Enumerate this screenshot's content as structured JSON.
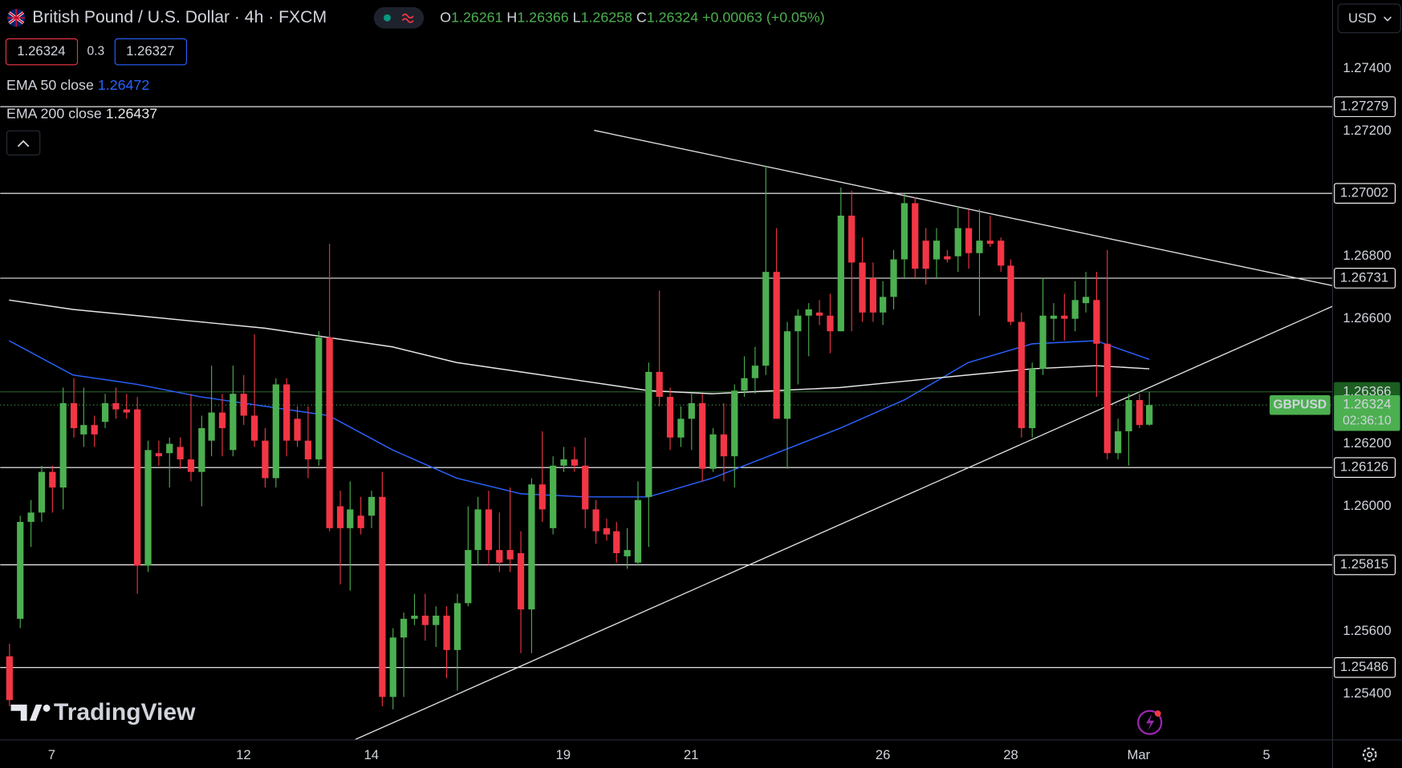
{
  "header": {
    "ohlc_labels": [
      "O",
      "H",
      "L",
      "C"
    ],
    "change": "+0.00063 (+0.05%)",
    "bid": 1.26324,
    "spread": 0.3,
    "ask": 1.26327,
    "currency": "USD",
    "brand": "TradingView"
  },
  "chart_data": {
    "type": "candlestick",
    "title": "British Pound / U.S. Dollar · 4h · FXCM",
    "symbol": "GBPUSD",
    "up_color": "#4caf50",
    "down_color": "#f23645",
    "level_color": "#ffffff",
    "x": [
      0,
      1,
      2,
      3,
      4,
      5,
      6,
      7,
      8,
      9,
      10,
      11,
      12,
      13,
      14,
      15,
      16,
      17,
      18,
      19,
      20,
      21,
      22,
      23,
      24,
      25,
      26,
      27,
      28,
      29,
      30,
      31,
      32,
      33,
      34,
      35,
      36,
      37,
      38,
      39,
      40,
      41,
      42,
      43,
      44,
      45,
      46,
      47,
      48,
      49,
      50,
      51,
      52,
      53,
      54,
      55,
      56,
      57,
      58,
      59,
      60,
      61,
      62,
      63,
      64,
      65,
      66,
      67,
      68,
      69,
      70,
      71,
      72,
      73,
      74,
      75,
      76,
      77,
      78,
      79,
      80,
      81,
      82,
      83,
      84,
      85,
      86,
      87,
      88,
      89,
      90,
      91,
      92,
      93,
      94,
      95,
      96,
      97,
      98,
      99,
      100,
      101,
      102,
      103,
      104,
      105,
      106,
      107
    ],
    "open": [
      1.2552,
      1.2564,
      1.2595,
      1.2598,
      1.2611,
      1.2606,
      1.2633,
      1.2623,
      1.2626,
      1.2627,
      1.2633,
      1.2631,
      1.2631,
      1.2581,
      1.2617,
      1.2617,
      1.2619,
      1.2615,
      1.2611,
      1.2621,
      1.263,
      1.2618,
      1.2636,
      1.2629,
      1.2621,
      1.2609,
      1.2639,
      1.2628,
      1.2621,
      1.2615,
      1.2654,
      1.26,
      1.2593,
      1.2597,
      1.2597,
      1.2603,
      1.2539,
      1.2558,
      1.2564,
      1.2565,
      1.2562,
      1.2565,
      1.2554,
      1.2569,
      1.2586,
      1.2599,
      1.2586,
      1.2586,
      1.2585,
      1.2567,
      1.2607,
      1.2593,
      1.2613,
      1.2615,
      1.2613,
      1.2599,
      1.2593,
      1.2592,
      1.2584,
      1.2582,
      1.2603,
      1.2643,
      1.2635,
      1.2622,
      1.2628,
      1.2633,
      1.2612,
      1.2623,
      1.2616,
      1.2637,
      1.2641,
      1.2645,
      1.2675,
      1.2628,
      1.2656,
      1.2661,
      1.2662,
      1.2661,
      1.2656,
      1.2693,
      1.2678,
      1.2673,
      1.2662,
      1.2667,
      1.2679,
      1.2697,
      1.2685,
      1.2679,
      1.268,
      1.268,
      1.2689,
      1.2681,
      1.2685,
      1.2685,
      1.2677,
      1.2659,
      1.2625,
      1.2644,
      1.266,
      1.2661,
      1.266,
      1.2665,
      1.2666,
      1.2652,
      1.2617,
      1.2624,
      1.2634,
      1.26261
    ],
    "high": [
      1.2556,
      1.2597,
      1.2602,
      1.2613,
      1.2613,
      1.2638,
      1.2641,
      1.2638,
      1.2629,
      1.2636,
      1.2638,
      1.2636,
      1.2635,
      1.2621,
      1.2621,
      1.2622,
      1.2622,
      1.2636,
      1.2629,
      1.2645,
      1.2636,
      1.2645,
      1.2642,
      1.2655,
      1.2625,
      1.2641,
      1.2641,
      1.2632,
      1.2632,
      1.2656,
      1.2684,
      1.2605,
      1.2608,
      1.2603,
      1.2605,
      1.2611,
      1.2561,
      1.2566,
      1.2572,
      1.2572,
      1.2568,
      1.2568,
      1.2572,
      1.26,
      1.2603,
      1.2605,
      1.2598,
      1.2606,
      1.2592,
      1.2609,
      1.2624,
      1.2616,
      1.2619,
      1.2619,
      1.2622,
      1.2602,
      1.2596,
      1.2595,
      1.2593,
      1.2608,
      1.2646,
      1.2669,
      1.2638,
      1.2632,
      1.2636,
      1.2636,
      1.2625,
      1.2633,
      1.2639,
      1.2648,
      1.2651,
      1.2709,
      1.2689,
      1.2659,
      1.2663,
      1.2665,
      1.2666,
      1.2668,
      1.2702,
      1.2701,
      1.2686,
      1.2678,
      1.2672,
      1.2682,
      1.27,
      1.2699,
      1.2689,
      1.2689,
      1.2682,
      1.2696,
      1.2695,
      1.2695,
      1.2693,
      1.2686,
      1.2679,
      1.2662,
      1.2646,
      1.2673,
      1.2665,
      1.2668,
      1.2672,
      1.2675,
      1.2675,
      1.2682,
      1.2628,
      1.2636,
      1.2636,
      1.26366
    ],
    "low": [
      1.2536,
      1.2561,
      1.2587,
      1.2595,
      1.2598,
      1.2599,
      1.2622,
      1.2619,
      1.2619,
      1.2625,
      1.2628,
      1.2628,
      1.2572,
      1.2579,
      1.2613,
      1.2606,
      1.2612,
      1.2608,
      1.26,
      1.2616,
      1.2616,
      1.2616,
      1.2626,
      1.2619,
      1.2606,
      1.2606,
      1.2616,
      1.2619,
      1.2609,
      1.2613,
      1.2592,
      1.2575,
      1.2573,
      1.2591,
      1.2593,
      1.2536,
      1.2535,
      1.2539,
      1.2562,
      1.2557,
      1.2555,
      1.2545,
      1.2541,
      1.2568,
      1.2581,
      1.2581,
      1.2579,
      1.2579,
      1.2553,
      1.2553,
      1.2595,
      1.2591,
      1.2611,
      1.2611,
      1.2593,
      1.2588,
      1.2589,
      1.2582,
      1.258,
      1.2581,
      1.2587,
      1.2632,
      1.2618,
      1.2619,
      1.2618,
      1.2608,
      1.2611,
      1.2608,
      1.2606,
      1.2635,
      1.2636,
      1.2642,
      1.2628,
      1.2612,
      1.2639,
      1.2648,
      1.2658,
      1.2649,
      1.2656,
      1.2656,
      1.2659,
      1.2659,
      1.2658,
      1.2663,
      1.2673,
      1.2673,
      1.2671,
      1.2673,
      1.2678,
      1.2675,
      1.2676,
      1.2661,
      1.2683,
      1.2675,
      1.2658,
      1.2622,
      1.2622,
      1.2642,
      1.2653,
      1.2653,
      1.2656,
      1.2662,
      1.2635,
      1.2615,
      1.2615,
      1.2613,
      1.2625,
      1.26258
    ],
    "close": [
      1.2538,
      1.2595,
      1.2598,
      1.2611,
      1.2606,
      1.2633,
      1.2625,
      1.2626,
      1.2623,
      1.2633,
      1.2631,
      1.263,
      1.2581,
      1.2618,
      1.2616,
      1.262,
      1.2615,
      1.2611,
      1.2625,
      1.263,
      1.2625,
      1.2636,
      1.2629,
      1.2621,
      1.2609,
      1.2639,
      1.2621,
      1.2621,
      1.2615,
      1.2654,
      1.2593,
      1.2593,
      1.2599,
      1.2593,
      1.2603,
      1.2539,
      1.2558,
      1.2564,
      1.2565,
      1.2562,
      1.2565,
      1.2554,
      1.2569,
      1.2586,
      1.2599,
      1.2586,
      1.2582,
      1.2583,
      1.2567,
      1.2607,
      1.2599,
      1.2613,
      1.2615,
      1.2613,
      1.2599,
      1.2592,
      1.2591,
      1.2585,
      1.2586,
      1.2602,
      1.2643,
      1.2635,
      1.2622,
      1.2628,
      1.2633,
      1.2612,
      1.2623,
      1.2616,
      1.2637,
      1.2641,
      1.2645,
      1.2675,
      1.2628,
      1.2656,
      1.2661,
      1.2663,
      1.2661,
      1.2656,
      1.2693,
      1.2678,
      1.2662,
      1.2662,
      1.2667,
      1.2679,
      1.2697,
      1.2676,
      1.2676,
      1.2685,
      1.2679,
      1.2689,
      1.2681,
      1.2685,
      1.2684,
      1.2677,
      1.2659,
      1.2625,
      1.2644,
      1.2661,
      1.2661,
      1.266,
      1.2666,
      1.2667,
      1.2652,
      1.2617,
      1.2624,
      1.2634,
      1.2626,
      1.26324
    ],
    "overlays": [
      {
        "name": "EMA 50 close",
        "value": 1.26472,
        "color": "#2962ff",
        "x": [
          0,
          6,
          12,
          18,
          24,
          30,
          36,
          42,
          48,
          54,
          60,
          66,
          72,
          78,
          84,
          90,
          96,
          102,
          107
        ],
        "values": [
          1.2653,
          1.2642,
          1.2639,
          1.2635,
          1.2632,
          1.2629,
          1.2618,
          1.2609,
          1.2604,
          1.2603,
          1.2603,
          1.2609,
          1.2617,
          1.2625,
          1.2634,
          1.2646,
          1.2652,
          1.2653,
          1.2647
        ]
      },
      {
        "name": "EMA 200 close",
        "value": 1.26437,
        "color": "#e8e8e8",
        "x": [
          0,
          6,
          12,
          18,
          24,
          30,
          36,
          42,
          48,
          54,
          60,
          66,
          72,
          78,
          84,
          90,
          96,
          102,
          107
        ],
        "values": [
          1.2666,
          1.2663,
          1.2661,
          1.2659,
          1.2657,
          1.2654,
          1.2651,
          1.2646,
          1.2643,
          1.264,
          1.2637,
          1.2636,
          1.2637,
          1.2638,
          1.264,
          1.2642,
          1.2644,
          1.2645,
          1.2644
        ]
      }
    ],
    "levels": [
      1.27279,
      1.27002,
      1.26731,
      1.26126,
      1.25815,
      1.25486
    ],
    "trendlines": [
      {
        "x": [
          54.9,
          124.2
        ],
        "values": [
          1.27203,
          1.26706
        ]
      },
      {
        "x": [
          32.5,
          124.2
        ],
        "values": [
          1.25254,
          1.2664
        ]
      }
    ],
    "last_high": 1.26366,
    "last_price": 1.26324,
    "countdown": "02:36:10",
    "xlim": [
      -0.84,
      124.16
    ],
    "xticks": [
      {
        "value": 4,
        "label": "7"
      },
      {
        "value": 22,
        "label": "12"
      },
      {
        "value": 34,
        "label": "14"
      },
      {
        "value": 52,
        "label": "19"
      },
      {
        "value": 64,
        "label": "21"
      },
      {
        "value": 82,
        "label": "26"
      },
      {
        "value": 94,
        "label": "28"
      },
      {
        "value": 106,
        "label": "Mar"
      },
      {
        "value": 118,
        "label": "5"
      }
    ],
    "ylim": [
      1.25254,
      1.2762
    ],
    "yticks": [
      {
        "value": 1.274,
        "label": "1.27400"
      },
      {
        "value": 1.272,
        "label": "1.27200"
      },
      {
        "value": 1.268,
        "label": "1.26800"
      },
      {
        "value": 1.266,
        "label": "1.26600"
      },
      {
        "value": 1.262,
        "label": "1.26200"
      },
      {
        "value": 1.26,
        "label": "1.26000"
      },
      {
        "value": 1.256,
        "label": "1.25600"
      },
      {
        "value": 1.254,
        "label": "1.25400"
      }
    ],
    "grid": false
  }
}
